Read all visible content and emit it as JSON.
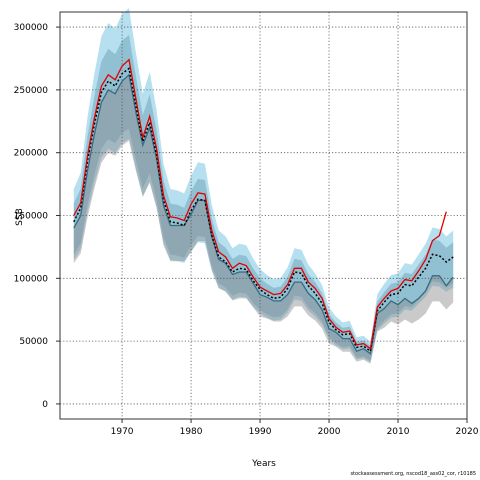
{
  "chart_data": {
    "type": "area",
    "xlabel": "Years",
    "ylabel": "SSB",
    "xlim": [
      1961,
      2020
    ],
    "ylim": [
      -12000,
      312000
    ],
    "xticks": [
      1970,
      1980,
      1990,
      2000,
      2010,
      2020
    ],
    "yticks": [
      0,
      50000,
      100000,
      150000,
      200000,
      250000,
      300000
    ],
    "grid": true,
    "years": [
      1963,
      1964,
      1965,
      1966,
      1967,
      1968,
      1969,
      1970,
      1971,
      1972,
      1973,
      1974,
      1975,
      1976,
      1977,
      1978,
      1979,
      1980,
      1981,
      1982,
      1983,
      1984,
      1985,
      1986,
      1987,
      1988,
      1989,
      1990,
      1991,
      1992,
      1993,
      1994,
      1995,
      1996,
      1997,
      1998,
      1999,
      2000,
      2001,
      2002,
      2003,
      2004,
      2005,
      2006,
      2007,
      2008,
      2009,
      2010,
      2011,
      2012,
      2013,
      2014,
      2015,
      2016,
      2017,
      2018
    ],
    "series": [
      {
        "color": "#e00000",
        "style": "solid",
        "values": [
          150000,
          160000,
          198000,
          228000,
          253000,
          262000,
          258000,
          269000,
          274000,
          243000,
          212000,
          229000,
          203000,
          166000,
          149000,
          148000,
          146000,
          159000,
          168000,
          167000,
          138000,
          121000,
          117000,
          108000,
          112000,
          110000,
          101000,
          93000,
          90000,
          87000,
          88000,
          95000,
          108000,
          108000,
          97000,
          92000,
          84000,
          68000,
          61000,
          57000,
          58000,
          47000,
          48000,
          44000,
          77000,
          84000,
          90000,
          92000,
          99000,
          98000,
          106000,
          115000,
          130000,
          134000,
          153000,
          null
        ]
      },
      {
        "color": "#000000",
        "style": "dotted",
        "values": [
          145000,
          156000,
          194000,
          223000,
          248000,
          257000,
          253000,
          263000,
          267000,
          237000,
          209000,
          224000,
          198000,
          162000,
          145000,
          144000,
          142000,
          154000,
          163000,
          162000,
          134000,
          117000,
          113000,
          105000,
          108000,
          107000,
          98000,
          91000,
          87000,
          84000,
          85000,
          92000,
          105000,
          104000,
          94000,
          88000,
          80000,
          65000,
          59000,
          55000,
          56000,
          45000,
          46000,
          42000,
          74000,
          81000,
          87000,
          88000,
          95000,
          94000,
          101000,
          108000,
          119000,
          118000,
          113000,
          117000
        ]
      },
      {
        "color": "#3a6a80",
        "style": "solid",
        "values": [
          140000,
          150000,
          186000,
          215000,
          240000,
          250000,
          247000,
          257000,
          262000,
          232000,
          206000,
          220000,
          195000,
          158000,
          142000,
          142000,
          142000,
          151000,
          162000,
          162000,
          133000,
          115000,
          112000,
          103000,
          105000,
          105000,
          96000,
          87000,
          85000,
          82000,
          82000,
          87000,
          97000,
          97000,
          88000,
          83000,
          75000,
          60000,
          57000,
          52000,
          52000,
          42000,
          44000,
          40000,
          72000,
          76000,
          82000,
          79000,
          84000,
          80000,
          84000,
          90000,
          102000,
          102000,
          94000,
          101000
        ]
      }
    ]
  },
  "footer_note": "stockassessment.org, nscod18_ass02_cor, r10185"
}
